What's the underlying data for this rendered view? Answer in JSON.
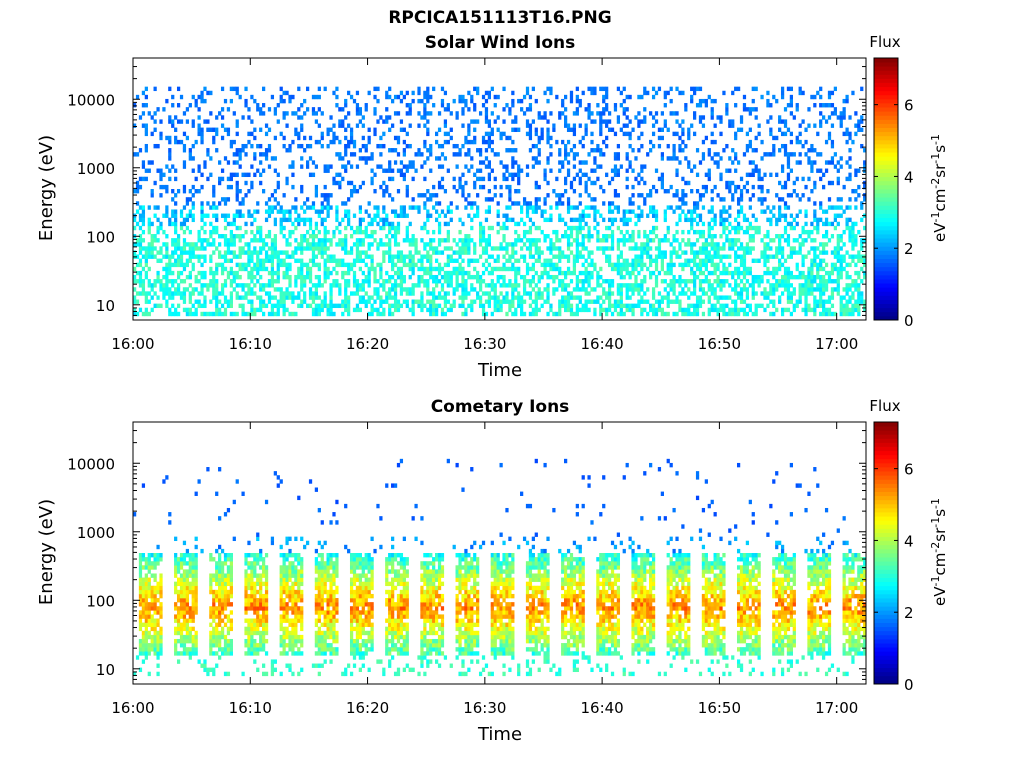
{
  "figure": {
    "title": "RPCICA151113T16.PNG"
  },
  "chart_data": [
    {
      "type": "heatmap",
      "title": "Solar Wind Ions",
      "xlabel": "Time",
      "ylabel": "Energy (eV)",
      "x_ticks": [
        "16:00",
        "16:10",
        "16:20",
        "16:30",
        "16:40",
        "16:50",
        "17:00"
      ],
      "x_range_minutes": [
        0,
        62.5
      ],
      "y_scale": "log",
      "y_range": [
        6,
        40000
      ],
      "y_ticks": [
        10,
        100,
        1000,
        10000
      ],
      "y_tick_labels": [
        "10",
        "100",
        "1000",
        "10000"
      ],
      "colorbar": {
        "label": "Flux",
        "unit": "eV-1cm-2sr-1s-1",
        "range": [
          0,
          7.3
        ],
        "ticks": [
          "0",
          "2",
          "4",
          "6"
        ],
        "colormap": "jet"
      },
      "description_of_data": {
        "sparse_band_eV": [
          300,
          15000
        ],
        "sparse_level": 1.5,
        "dense_band_eV": [
          7,
          300
        ],
        "dense_level": [
          2.5,
          3.4
        ]
      }
    },
    {
      "type": "heatmap",
      "title": "Cometary Ions",
      "xlabel": "Time",
      "ylabel": "Energy (eV)",
      "x_ticks": [
        "16:00",
        "16:10",
        "16:20",
        "16:30",
        "16:40",
        "16:50",
        "17:00"
      ],
      "x_range_minutes": [
        0,
        62.5
      ],
      "y_scale": "log",
      "y_range": [
        6,
        40000
      ],
      "y_ticks": [
        10,
        100,
        1000,
        10000
      ],
      "y_tick_labels": [
        "10",
        "100",
        "1000",
        "10000"
      ],
      "colorbar": {
        "label": "Flux",
        "unit": "eV-1cm-2sr-1s-1",
        "range": [
          0,
          7.3
        ],
        "ticks": [
          "0",
          "2",
          "4",
          "6"
        ],
        "colormap": "jet"
      },
      "description_of_data": {
        "burst_period_minutes": 3.0,
        "burst_energy_eV": [
          15,
          500
        ],
        "burst_peak_energy_eV": 40,
        "burst_peak_level": [
          4.8,
          6.0
        ],
        "sparse_high_energy_eV": [
          800,
          12000
        ],
        "sparse_level": 1.4
      }
    }
  ]
}
